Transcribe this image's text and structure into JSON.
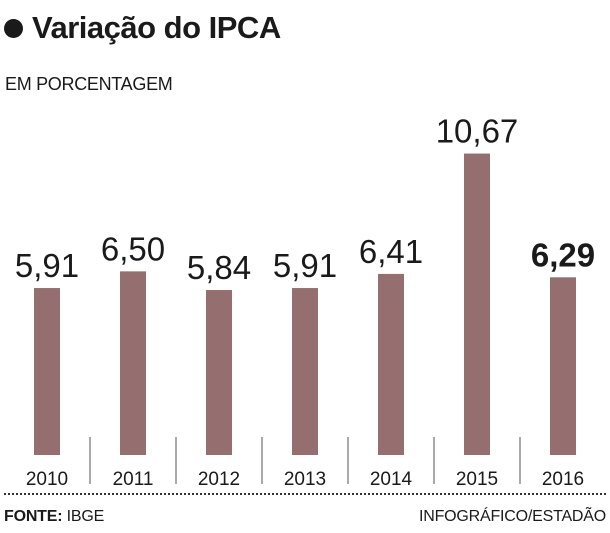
{
  "header": {
    "title": "Variação do IPCA",
    "subtitle": "EM PORCENTAGEM"
  },
  "footer": {
    "source_label": "FONTE:",
    "source_value": "IBGE",
    "credit": "INFOGRÁFICO/ESTADÃO"
  },
  "colors": {
    "bar": "#956e6f",
    "text": "#1a1a1a",
    "divider": "#333333"
  },
  "chart_data": {
    "type": "bar",
    "categories": [
      "2010",
      "2011",
      "2012",
      "2013",
      "2014",
      "2015",
      "2016"
    ],
    "values": [
      5.91,
      6.5,
      5.84,
      5.91,
      6.41,
      10.67,
      6.29
    ],
    "data_labels": [
      "5,91",
      "6,50",
      "5,84",
      "5,91",
      "6,41",
      "10,67",
      "6,29"
    ],
    "highlight_index": 6,
    "title": "Variação do IPCA",
    "ylabel": "EM PORCENTAGEM",
    "xlabel": "",
    "grid": false,
    "legend": "none"
  }
}
